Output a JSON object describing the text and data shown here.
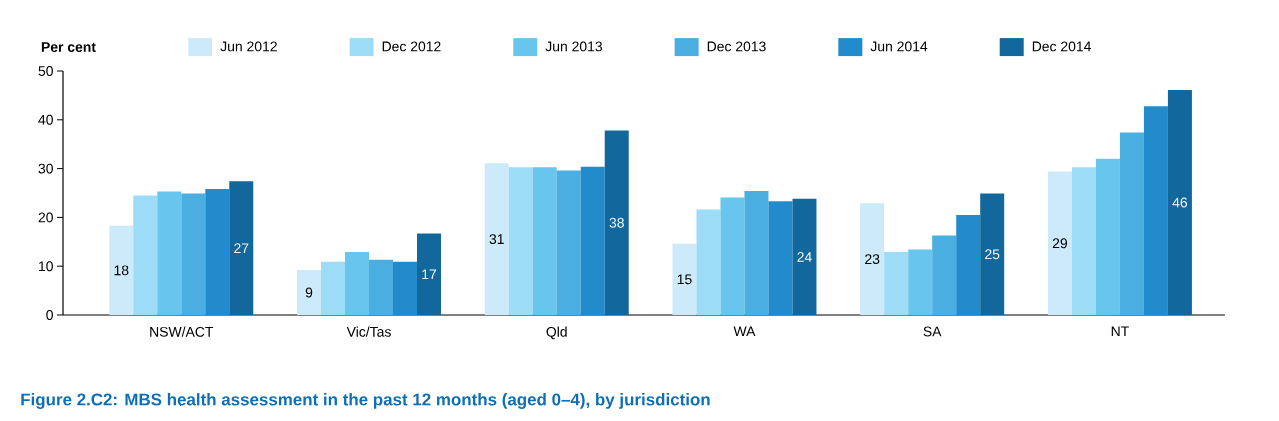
{
  "chart_data": {
    "type": "bar",
    "title": "Figure 2.C2: MBS health assessment in the past 12 months (aged 0–4), by jurisdiction",
    "ylabel": "Per cent",
    "categories": [
      "NSW/ACT",
      "Vic/Tas",
      "Qld",
      "WA",
      "SA",
      "NT"
    ],
    "series": [
      {
        "name": "Jun 2012",
        "color": "#cdeafa",
        "values": [
          18.3,
          9.2,
          31.1,
          14.6,
          22.9,
          29.4
        ],
        "value_labels": [
          "18",
          "9",
          "31",
          "15",
          "23",
          "29"
        ]
      },
      {
        "name": "Dec 2012",
        "color": "#9ddcf7",
        "values": [
          24.5,
          10.9,
          30.3,
          21.6,
          12.9,
          30.3
        ]
      },
      {
        "name": "Jun 2013",
        "color": "#68c6ee",
        "values": [
          25.3,
          12.9,
          30.3,
          24.1,
          13.4,
          32.0
        ]
      },
      {
        "name": "Dec 2013",
        "color": "#4aaee0",
        "values": [
          24.9,
          11.3,
          29.6,
          25.4,
          16.3,
          37.4
        ]
      },
      {
        "name": "Jun 2014",
        "color": "#228bcc",
        "values": [
          25.8,
          10.9,
          30.4,
          23.3,
          20.5,
          42.8
        ]
      },
      {
        "name": "Dec 2014",
        "color": "#12689c",
        "values": [
          27.4,
          16.7,
          37.8,
          23.8,
          24.9,
          46.1
        ],
        "value_labels": [
          "27",
          "17",
          "38",
          "24",
          "25",
          "46"
        ]
      }
    ],
    "ylim": [
      0,
      50
    ],
    "yticks": [
      0,
      10,
      20,
      30,
      40,
      50
    ],
    "legend": "top"
  }
}
